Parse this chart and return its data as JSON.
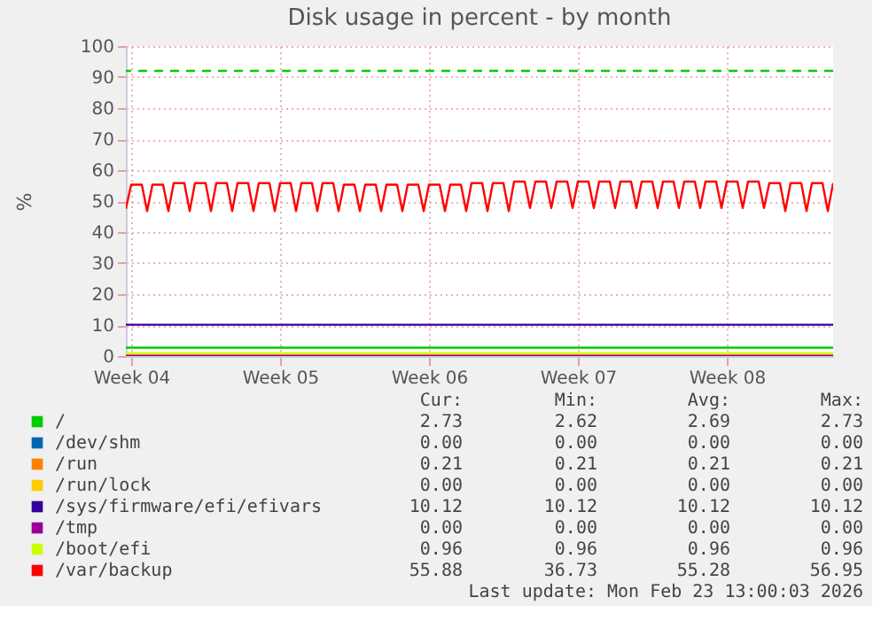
{
  "chart_data": {
    "type": "line",
    "title": "Disk usage in percent - by month",
    "ylabel": "%",
    "categories": [
      null,
      "Week 04",
      null,
      null,
      null,
      null,
      null,
      null,
      null,
      null,
      null,
      null,
      null,
      null,
      null,
      null,
      null,
      null,
      null,
      null,
      null,
      null,
      null,
      null,
      null,
      null,
      null,
      null,
      null,
      "Week 05",
      null,
      null,
      null,
      null,
      null,
      null,
      null,
      null,
      null,
      null,
      null,
      null,
      null,
      null,
      null,
      null,
      null,
      null,
      null,
      null,
      null,
      null,
      null,
      null,
      null,
      null,
      null,
      "Week 06",
      null,
      null,
      null,
      null,
      null,
      null,
      null,
      null,
      null,
      null,
      null,
      null,
      null,
      null,
      null,
      null,
      null,
      null,
      null,
      null,
      null,
      null,
      null,
      null,
      null,
      null,
      null,
      "Week 07",
      null,
      null,
      null,
      null,
      null,
      null,
      null,
      null,
      null,
      null,
      null,
      null,
      null,
      null,
      null,
      null,
      null,
      null,
      null,
      null,
      null,
      null,
      null,
      null,
      null,
      null,
      null,
      "Week 08",
      null,
      null,
      null,
      null,
      null,
      null,
      null,
      null,
      null,
      null,
      null,
      null,
      null,
      null,
      null,
      null,
      null,
      null,
      null,
      null
    ],
    "ylim": [
      0,
      100
    ],
    "yticks": [
      0,
      10,
      20,
      30,
      40,
      50,
      60,
      70,
      80,
      90,
      100
    ],
    "grid": true,
    "legend": "bottom",
    "marker": "none",
    "line_style": "solid",
    "ref_lines": [
      {
        "axis": "y",
        "value": 92,
        "color": "#00cc00",
        "line_style": "dashed"
      }
    ],
    "series": [
      {
        "name": "/",
        "color": "#00cc00",
        "values": [
          2.7,
          2.7,
          2.7,
          2.7,
          2.7,
          2.7,
          2.7,
          2.7,
          2.7,
          2.7,
          2.7,
          2.7,
          2.7,
          2.7,
          2.7,
          2.7,
          2.7,
          2.7,
          2.7,
          2.7,
          2.7,
          2.7,
          2.7,
          2.7,
          2.7,
          2.7,
          2.7,
          2.7,
          2.7,
          2.7,
          2.7,
          2.7,
          2.7,
          2.7,
          2.7,
          2.7,
          2.7,
          2.7,
          2.7,
          2.7,
          2.7,
          2.7,
          2.7,
          2.7,
          2.7,
          2.7,
          2.7,
          2.7,
          2.7,
          2.7,
          2.7,
          2.7,
          2.7,
          2.7,
          2.7,
          2.7,
          2.7,
          2.7,
          2.7,
          2.7,
          2.7,
          2.7,
          2.7,
          2.7,
          2.7,
          2.7,
          2.7,
          2.7,
          2.7,
          2.7,
          2.7,
          2.7,
          2.7,
          2.7,
          2.7,
          2.7,
          2.7,
          2.7,
          2.7,
          2.7,
          2.7,
          2.7,
          2.7,
          2.7,
          2.7,
          2.7,
          2.7,
          2.7,
          2.7,
          2.7,
          2.7,
          2.7,
          2.7,
          2.7,
          2.7,
          2.7,
          2.7,
          2.7,
          2.7,
          2.7,
          2.7,
          2.7,
          2.7,
          2.7,
          2.7,
          2.7,
          2.7,
          2.7,
          2.7,
          2.7,
          2.7,
          2.7,
          2.7,
          2.7,
          2.7,
          2.7,
          2.7,
          2.7,
          2.7,
          2.7,
          2.7,
          2.7,
          2.7,
          2.7,
          2.7,
          2.7,
          2.7,
          2.7,
          2.7,
          2.7,
          2.7,
          2.7,
          2.7,
          2.7
        ]
      },
      {
        "name": "/dev/shm",
        "color": "#0066b3",
        "values": [
          null,
          null,
          null,
          null,
          null,
          null,
          null,
          null,
          null,
          null,
          null,
          null,
          null,
          null,
          null,
          null,
          null,
          null,
          null,
          null,
          null,
          null,
          null,
          null,
          null,
          null,
          null,
          null,
          null,
          null,
          null,
          null,
          null,
          null,
          null,
          null,
          null,
          null,
          null,
          null,
          null,
          null,
          null,
          null,
          null,
          null,
          null,
          null,
          null,
          null,
          null,
          null,
          null,
          null,
          null,
          null,
          null,
          null,
          null,
          null,
          null,
          null,
          null,
          null,
          null,
          null,
          null,
          null,
          null,
          null,
          null,
          null,
          null,
          null,
          null,
          null,
          null,
          null,
          null,
          null,
          null,
          null,
          null,
          null,
          null,
          null,
          null,
          null,
          null,
          null,
          null,
          null,
          null,
          null,
          null,
          null,
          null,
          null,
          null,
          null,
          null,
          null,
          null,
          null,
          null,
          null,
          null,
          null,
          null,
          null,
          null,
          null,
          null,
          null,
          null,
          null,
          null,
          null,
          null,
          null,
          null,
          null,
          null,
          null,
          null,
          null,
          null,
          null,
          null,
          null,
          null,
          null,
          null,
          null
        ]
      },
      {
        "name": "/run",
        "color": "#ff8000",
        "values": [
          0.21,
          0.21,
          0.21,
          0.21,
          0.21,
          0.21,
          0.21,
          0.21,
          0.21,
          0.21,
          0.21,
          0.21,
          0.21,
          0.21,
          0.21,
          0.21,
          0.21,
          0.21,
          0.21,
          0.21,
          0.21,
          0.21,
          0.21,
          0.21,
          0.21,
          0.21,
          0.21,
          0.21,
          0.21,
          0.21,
          0.21,
          0.21,
          0.21,
          0.21,
          0.21,
          0.21,
          0.21,
          0.21,
          0.21,
          0.21,
          0.21,
          0.21,
          0.21,
          0.21,
          0.21,
          0.21,
          0.21,
          0.21,
          0.21,
          0.21,
          0.21,
          0.21,
          0.21,
          0.21,
          0.21,
          0.21,
          0.21,
          0.21,
          0.21,
          0.21,
          0.21,
          0.21,
          0.21,
          0.21,
          0.21,
          0.21,
          0.21,
          0.21,
          0.21,
          0.21,
          0.21,
          0.21,
          0.21,
          0.21,
          0.21,
          0.21,
          0.21,
          0.21,
          0.21,
          0.21,
          0.21,
          0.21,
          0.21,
          0.21,
          0.21,
          0.21,
          0.21,
          0.21,
          0.21,
          0.21,
          0.21,
          0.21,
          0.21,
          0.21,
          0.21,
          0.21,
          0.21,
          0.21,
          0.21,
          0.21,
          0.21,
          0.21,
          0.21,
          0.21,
          0.21,
          0.21,
          0.21,
          0.21,
          0.21,
          0.21,
          0.21,
          0.21,
          0.21,
          0.21,
          0.21,
          0.21,
          0.21,
          0.21,
          0.21,
          0.21,
          0.21,
          0.21,
          0.21,
          0.21,
          0.21,
          0.21,
          0.21,
          0.21,
          0.21,
          0.21,
          0.21,
          0.21,
          0.21,
          0.21
        ]
      },
      {
        "name": "/run/lock",
        "color": "#ffcc00",
        "values": [
          null,
          null,
          null,
          null,
          null,
          null,
          null,
          null,
          null,
          null,
          null,
          null,
          null,
          null,
          null,
          null,
          null,
          null,
          null,
          null,
          null,
          null,
          null,
          null,
          null,
          null,
          null,
          null,
          null,
          null,
          null,
          null,
          null,
          null,
          null,
          null,
          null,
          null,
          null,
          null,
          null,
          null,
          null,
          null,
          null,
          null,
          null,
          null,
          null,
          null,
          null,
          null,
          null,
          null,
          null,
          null,
          null,
          null,
          null,
          null,
          null,
          null,
          null,
          null,
          null,
          null,
          null,
          null,
          null,
          null,
          null,
          null,
          null,
          null,
          null,
          null,
          null,
          null,
          null,
          null,
          null,
          null,
          null,
          null,
          null,
          null,
          null,
          null,
          null,
          null,
          null,
          null,
          null,
          null,
          null,
          null,
          null,
          null,
          null,
          null,
          null,
          null,
          null,
          null,
          null,
          null,
          null,
          null,
          null,
          null,
          null,
          null,
          null,
          null,
          null,
          null,
          null,
          null,
          null,
          null,
          null,
          null,
          null,
          null,
          null,
          null,
          null,
          null,
          null,
          null,
          null,
          null,
          null,
          null
        ]
      },
      {
        "name": "/sys/firmware/efi/efivars",
        "color": "#330099",
        "values": [
          10.12,
          10.12,
          10.12,
          10.12,
          10.12,
          10.12,
          10.12,
          10.12,
          10.12,
          10.12,
          10.12,
          10.12,
          10.12,
          10.12,
          10.12,
          10.12,
          10.12,
          10.12,
          10.12,
          10.12,
          10.12,
          10.12,
          10.12,
          10.12,
          10.12,
          10.12,
          10.12,
          10.12,
          10.12,
          10.12,
          10.12,
          10.12,
          10.12,
          10.12,
          10.12,
          10.12,
          10.12,
          10.12,
          10.12,
          10.12,
          10.12,
          10.12,
          10.12,
          10.12,
          10.12,
          10.12,
          10.12,
          10.12,
          10.12,
          10.12,
          10.12,
          10.12,
          10.12,
          10.12,
          10.12,
          10.12,
          10.12,
          10.12,
          10.12,
          10.12,
          10.12,
          10.12,
          10.12,
          10.12,
          10.12,
          10.12,
          10.12,
          10.12,
          10.12,
          10.12,
          10.12,
          10.12,
          10.12,
          10.12,
          10.12,
          10.12,
          10.12,
          10.12,
          10.12,
          10.12,
          10.12,
          10.12,
          10.12,
          10.12,
          10.12,
          10.12,
          10.12,
          10.12,
          10.12,
          10.12,
          10.12,
          10.12,
          10.12,
          10.12,
          10.12,
          10.12,
          10.12,
          10.12,
          10.12,
          10.12,
          10.12,
          10.12,
          10.12,
          10.12,
          10.12,
          10.12,
          10.12,
          10.12,
          10.12,
          10.12,
          10.12,
          10.12,
          10.12,
          10.12,
          10.12,
          10.12,
          10.12,
          10.12,
          10.12,
          10.12,
          10.12,
          10.12,
          10.12,
          10.12,
          10.12,
          10.12,
          10.12,
          10.12,
          10.12,
          10.12,
          10.12,
          10.12,
          10.12,
          10.12
        ]
      },
      {
        "name": "/tmp",
        "color": "#990099",
        "values": [
          0,
          0,
          0,
          0,
          0,
          0,
          0,
          0,
          0,
          0,
          0,
          0,
          0,
          0,
          0,
          0,
          0,
          0,
          0,
          0,
          0,
          0,
          0,
          0,
          0,
          0,
          0,
          0,
          0,
          0,
          0,
          0,
          0,
          0,
          0,
          0,
          0,
          0,
          0,
          0,
          0,
          0,
          0,
          0,
          0,
          0,
          0,
          0,
          0,
          0,
          0,
          0,
          0,
          0,
          0,
          0,
          0,
          0,
          0,
          0,
          0,
          0,
          0,
          0,
          0,
          0,
          0,
          0,
          0,
          0,
          0,
          0,
          0,
          0,
          0,
          0,
          0,
          0,
          0,
          0,
          0,
          0,
          0,
          0,
          0,
          0,
          0,
          0,
          0,
          0,
          0,
          0,
          0,
          0,
          0,
          0,
          0,
          0,
          0,
          0,
          0,
          0,
          0,
          0,
          0,
          0,
          0,
          0,
          0,
          0,
          0,
          0,
          0,
          0,
          0,
          0,
          0,
          0,
          0,
          0,
          0,
          0,
          0,
          0,
          0,
          0,
          0,
          0,
          0,
          0,
          0,
          0,
          0,
          0
        ]
      },
      {
        "name": "/boot/efi",
        "color": "#ccff00",
        "values": [
          0.96,
          0.96,
          0.96,
          0.96,
          0.96,
          0.96,
          0.96,
          0.96,
          0.96,
          0.96,
          0.96,
          0.96,
          0.96,
          0.96,
          0.96,
          0.96,
          0.96,
          0.96,
          0.96,
          0.96,
          0.96,
          0.96,
          0.96,
          0.96,
          0.96,
          0.96,
          0.96,
          0.96,
          0.96,
          0.96,
          0.96,
          0.96,
          0.96,
          0.96,
          0.96,
          0.96,
          0.96,
          0.96,
          0.96,
          0.96,
          0.96,
          0.96,
          0.96,
          0.96,
          0.96,
          0.96,
          0.96,
          0.96,
          0.96,
          0.96,
          0.96,
          0.96,
          0.96,
          0.96,
          0.96,
          0.96,
          0.96,
          0.96,
          0.96,
          0.96,
          0.96,
          0.96,
          0.96,
          0.96,
          0.96,
          0.96,
          0.96,
          0.96,
          0.96,
          0.96,
          0.96,
          0.96,
          0.96,
          0.96,
          0.96,
          0.96,
          0.96,
          0.96,
          0.96,
          0.96,
          0.96,
          0.96,
          0.96,
          0.96,
          0.96,
          0.96,
          0.96,
          0.96,
          0.96,
          0.96,
          0.96,
          0.96,
          0.96,
          0.96,
          0.96,
          0.96,
          0.96,
          0.96,
          0.96,
          0.96,
          0.96,
          0.96,
          0.96,
          0.96,
          0.96,
          0.96,
          0.96,
          0.96,
          0.96,
          0.96,
          0.96,
          0.96,
          0.96,
          0.96,
          0.96,
          0.96,
          0.96,
          0.96,
          0.96,
          0.96,
          0.96,
          0.96,
          0.96,
          0.96,
          0.96,
          0.96,
          0.96,
          0.96,
          0.96,
          0.96,
          0.96,
          0.96,
          0.96,
          0.96
        ]
      },
      {
        "name": "/var/backup",
        "color": "#ff0000",
        "values": [
          47.5,
          55.3,
          55.3,
          55.3,
          46.8,
          55.3,
          55.3,
          55.3,
          46.8,
          55.8,
          55.8,
          55.8,
          46.8,
          55.8,
          55.8,
          55.8,
          46.8,
          55.8,
          55.8,
          55.8,
          46.8,
          55.8,
          55.8,
          55.8,
          46.8,
          55.8,
          55.8,
          55.8,
          46.8,
          55.8,
          55.8,
          55.8,
          46.8,
          55.8,
          55.8,
          55.8,
          46.8,
          55.8,
          55.8,
          55.8,
          46.8,
          55.3,
          55.3,
          55.3,
          46.8,
          55.3,
          55.3,
          55.3,
          46.8,
          55.3,
          55.3,
          55.3,
          46.8,
          55.3,
          55.3,
          55.3,
          46.8,
          55.3,
          55.3,
          55.3,
          46.8,
          55.3,
          55.3,
          55.3,
          46.8,
          55.8,
          55.8,
          55.8,
          46.8,
          55.8,
          55.8,
          55.8,
          46.8,
          56.3,
          56.3,
          56.3,
          47.8,
          56.3,
          56.3,
          56.3,
          47.8,
          56.3,
          56.3,
          56.3,
          47.8,
          56.3,
          56.3,
          56.3,
          47.8,
          56.3,
          56.3,
          56.3,
          47.8,
          56.3,
          56.3,
          56.3,
          47.8,
          56.3,
          56.3,
          56.3,
          47.8,
          56.3,
          56.3,
          56.3,
          47.8,
          56.3,
          56.3,
          56.3,
          47.8,
          56.3,
          56.3,
          56.3,
          47.8,
          56.3,
          56.3,
          56.3,
          47.8,
          56.3,
          56.3,
          56.3,
          47.8,
          55.8,
          55.8,
          55.8,
          46.8,
          55.8,
          55.8,
          55.8,
          46.8,
          55.8,
          55.8,
          55.8,
          46.8,
          55.8
        ]
      }
    ],
    "annotations": [
      "Cur:",
      "Min:",
      "Avg:",
      "Max:",
      "2.73",
      "2.62",
      "2.69",
      "2.73",
      "0.00",
      "0.00",
      "0.00",
      "0.00",
      "0.21",
      "0.21",
      "0.21",
      "0.21",
      "0.00",
      "0.00",
      "0.00",
      "0.00",
      "10.12",
      "10.12",
      "10.12",
      "10.12",
      "0.00",
      "0.00",
      "0.00",
      "0.00",
      "0.96",
      "0.96",
      "0.96",
      "0.96",
      "55.88",
      "36.73",
      "55.28",
      "56.95",
      "Last update: Mon Feb 23 13:00:03 2026"
    ]
  }
}
